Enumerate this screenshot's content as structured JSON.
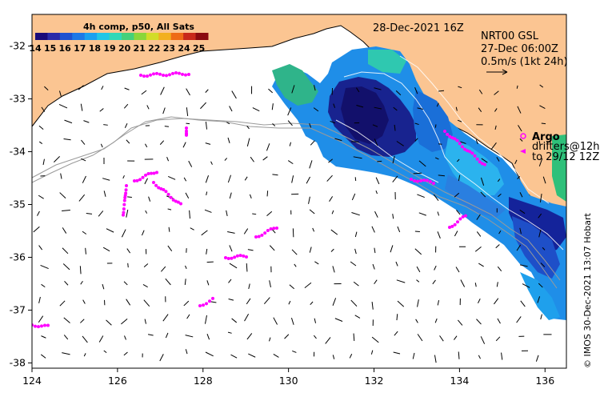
{
  "map": {
    "lon_ticks": [
      "124",
      "126",
      "128",
      "130",
      "132",
      "134",
      "136"
    ],
    "lat_ticks": [
      "-32",
      "-33",
      "-34",
      "-35",
      "-36",
      "-37",
      "-38"
    ],
    "lon_range": [
      124,
      136.5
    ],
    "lat_range": [
      -38.1,
      -31.4
    ],
    "colors": {
      "land": "#FBC592",
      "coast_line": "#000000",
      "bathy_line": "#9a9a9a",
      "drifter": "#ff00ff",
      "vector": "#000000"
    }
  },
  "colorbar": {
    "title": "4h comp, p50, All Sats",
    "labels": [
      "14",
      "15",
      "16",
      "17",
      "18",
      "19",
      "20",
      "21",
      "22",
      "23",
      "24",
      "25"
    ],
    "palette": [
      "#1a0a7a",
      "#2a2aa8",
      "#1f52d0",
      "#1e78e6",
      "#1aa0ef",
      "#20c6e6",
      "#30d8b8",
      "#44d07a",
      "#8ad63a",
      "#d2dc28",
      "#f2b020",
      "#ee6a16",
      "#c8281a",
      "#8a0a10"
    ]
  },
  "header": {
    "date": "28-Dec-2021 16Z",
    "product": "NRT00 GSL",
    "time": "27-Dec 06:00Z",
    "scale": "0.5m/s (1kt 24h)"
  },
  "legend": {
    "argo": "Argo",
    "drifters_line1": "drifters@12h",
    "drifters_line2": "to 29/12 12Z"
  },
  "credit": "© IMOS 30-Dec-2021 13:07 Hobart"
}
